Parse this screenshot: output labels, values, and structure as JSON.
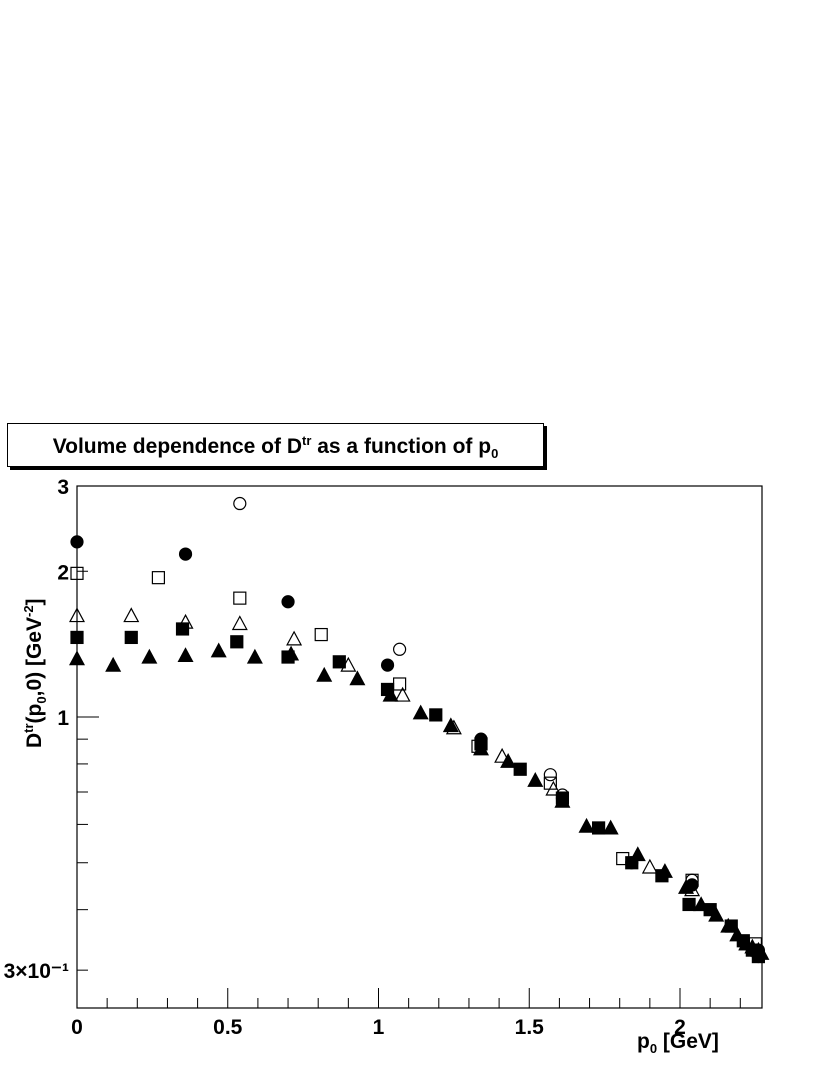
{
  "chart_data": {
    "type": "scatter",
    "title_parts": [
      "Volume dependence of D",
      "tr",
      " as a function of p",
      "0"
    ],
    "xlabel_parts": [
      "p",
      "0",
      " [GeV]"
    ],
    "ylabel_parts": [
      "D",
      "tr",
      "(p",
      "0",
      ",0) [GeV",
      "-2",
      "]"
    ],
    "xlim": [
      0,
      2.28
    ],
    "ylim": [
      0.26,
      3.0
    ],
    "yscale": "log",
    "x_ticks": [
      "0",
      "0.5",
      "1",
      "1.5",
      "2"
    ],
    "y_tick_labels": [
      {
        "value": 3,
        "label": "3"
      },
      {
        "value": 2,
        "label": "2"
      },
      {
        "value": 1,
        "label": "1"
      },
      {
        "value": 0.3,
        "label": "3×10⁻¹"
      }
    ],
    "series": [
      {
        "marker": "open-circle",
        "points": [
          [
            0.54,
            2.76
          ],
          [
            1.07,
            1.38
          ],
          [
            1.57,
            0.76
          ],
          [
            1.61,
            0.69
          ],
          [
            2.04,
            0.46
          ],
          [
            2.26,
            0.32
          ]
        ]
      },
      {
        "marker": "filled-circle",
        "points": [
          [
            0.0,
            2.3
          ],
          [
            0.36,
            2.17
          ],
          [
            0.7,
            1.73
          ],
          [
            1.03,
            1.28
          ],
          [
            1.34,
            0.9
          ],
          [
            1.61,
            0.68
          ],
          [
            1.84,
            0.5
          ],
          [
            2.04,
            0.45
          ],
          [
            2.26,
            0.33
          ]
        ]
      },
      {
        "marker": "open-square",
        "points": [
          [
            0.0,
            1.98
          ],
          [
            0.27,
            1.94
          ],
          [
            0.54,
            1.76
          ],
          [
            0.81,
            1.48
          ],
          [
            1.07,
            1.17
          ],
          [
            1.33,
            0.87
          ],
          [
            1.57,
            0.73
          ],
          [
            1.81,
            0.51
          ],
          [
            2.04,
            0.46
          ],
          [
            2.25,
            0.34
          ]
        ]
      },
      {
        "marker": "open-triangle",
        "points": [
          [
            0.0,
            1.62
          ],
          [
            0.18,
            1.62
          ],
          [
            0.36,
            1.57
          ],
          [
            0.54,
            1.56
          ],
          [
            0.72,
            1.45
          ],
          [
            0.9,
            1.28
          ],
          [
            1.08,
            1.11
          ],
          [
            1.25,
            0.95
          ],
          [
            1.41,
            0.83
          ],
          [
            1.58,
            0.71
          ],
          [
            1.9,
            0.49
          ],
          [
            2.04,
            0.44
          ],
          [
            2.22,
            0.34
          ]
        ]
      },
      {
        "marker": "filled-square",
        "points": [
          [
            0.0,
            1.46
          ],
          [
            0.18,
            1.46
          ],
          [
            0.35,
            1.52
          ],
          [
            0.53,
            1.43
          ],
          [
            0.7,
            1.33
          ],
          [
            0.87,
            1.3
          ],
          [
            1.03,
            1.14
          ],
          [
            1.19,
            1.01
          ],
          [
            1.34,
            0.88
          ],
          [
            1.47,
            0.78
          ],
          [
            1.61,
            0.68
          ],
          [
            1.73,
            0.59
          ],
          [
            1.84,
            0.5
          ],
          [
            1.94,
            0.47
          ],
          [
            2.03,
            0.41
          ],
          [
            2.1,
            0.4
          ],
          [
            2.17,
            0.37
          ],
          [
            2.21,
            0.345
          ],
          [
            2.24,
            0.33
          ],
          [
            2.26,
            0.32
          ]
        ]
      },
      {
        "marker": "filled-triangle",
        "points": [
          [
            0.0,
            1.32
          ],
          [
            0.12,
            1.28
          ],
          [
            0.24,
            1.33
          ],
          [
            0.36,
            1.34
          ],
          [
            0.47,
            1.37
          ],
          [
            0.59,
            1.33
          ],
          [
            0.71,
            1.35
          ],
          [
            0.82,
            1.22
          ],
          [
            0.93,
            1.2
          ],
          [
            1.04,
            1.11
          ],
          [
            1.14,
            1.02
          ],
          [
            1.24,
            0.96
          ],
          [
            1.34,
            0.86
          ],
          [
            1.43,
            0.81
          ],
          [
            1.52,
            0.74
          ],
          [
            1.61,
            0.67
          ],
          [
            1.69,
            0.595
          ],
          [
            1.77,
            0.59
          ],
          [
            1.86,
            0.52
          ],
          [
            1.95,
            0.48
          ],
          [
            2.02,
            0.445
          ],
          [
            2.07,
            0.41
          ],
          [
            2.12,
            0.39
          ],
          [
            2.16,
            0.37
          ],
          [
            2.19,
            0.355
          ],
          [
            2.22,
            0.34
          ],
          [
            2.24,
            0.335
          ],
          [
            2.26,
            0.33
          ],
          [
            2.27,
            0.325
          ]
        ]
      }
    ]
  }
}
